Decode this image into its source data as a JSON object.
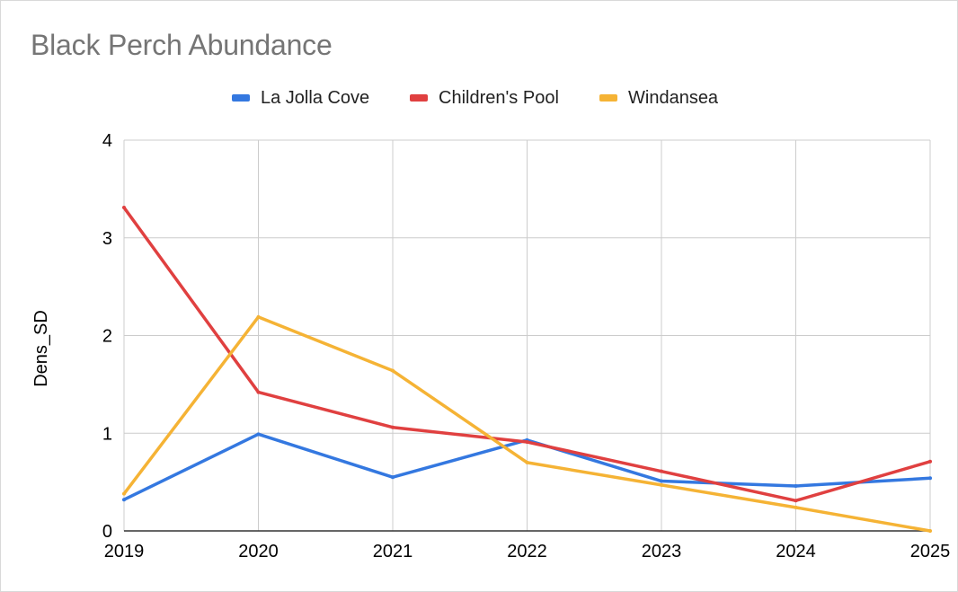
{
  "chart_data": {
    "type": "line",
    "title": "Black Perch Abundance",
    "xlabel": "",
    "ylabel": "Dens_SD",
    "x": [
      2019,
      2020,
      2021,
      2022,
      2023,
      2024,
      2025
    ],
    "x_tick_labels": [
      "2019",
      "2020",
      "2021",
      "2022",
      "2023",
      "2024",
      "2025"
    ],
    "y_tick_labels": [
      "0",
      "1",
      "2",
      "3",
      "4"
    ],
    "ylim": [
      0,
      4
    ],
    "grid": true,
    "legend_position": "top",
    "series": [
      {
        "name": "La Jolla Cove",
        "color": "#3478e0",
        "values": [
          0.32,
          0.99,
          0.55,
          0.93,
          0.51,
          0.46,
          0.54
        ]
      },
      {
        "name": "Children's Pool",
        "color": "#e04040",
        "values": [
          3.31,
          1.42,
          1.06,
          0.91,
          0.61,
          0.31,
          0.71
        ]
      },
      {
        "name": "Windansea",
        "color": "#f5b335",
        "values": [
          0.38,
          2.19,
          1.64,
          0.7,
          0.47,
          0.24,
          0.0
        ]
      }
    ]
  }
}
